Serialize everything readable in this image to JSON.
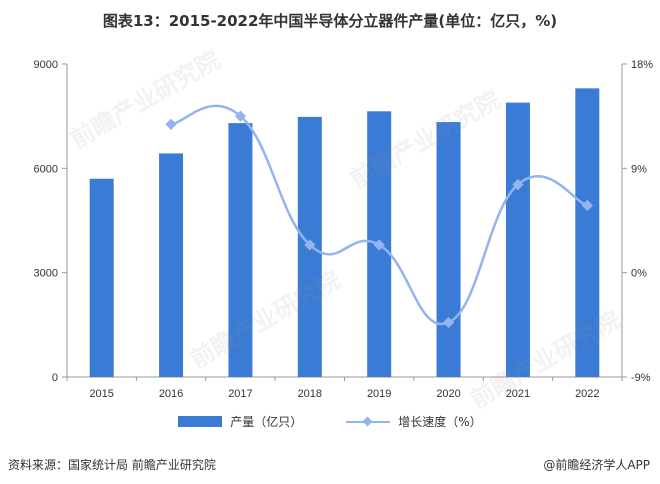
{
  "title": "图表13：2015-2022年中国半导体分立器件产量(单位：亿只，%)",
  "source": "资料来源：国家统计局 前瞻产业研究院",
  "credit": "@前瞻经济学人APP",
  "watermark": "前瞻产业研究院",
  "colors": {
    "bar": "#3a7bd5",
    "line": "#93b4ee",
    "axis": "#999999"
  },
  "legend": {
    "bar_label": "产量（亿只）",
    "line_label": "增长速度（%）"
  },
  "chart_data": {
    "type": "bar",
    "title": "2015-2022年中国半导体分立器件产量",
    "categories": [
      "2015",
      "2016",
      "2017",
      "2018",
      "2019",
      "2020",
      "2021",
      "2022"
    ],
    "series": [
      {
        "name": "产量（亿只）",
        "type": "bar",
        "axis": "left",
        "values": [
          5700,
          6430,
          7300,
          7480,
          7640,
          7330,
          7890,
          8300
        ]
      },
      {
        "name": "增长速度（%）",
        "type": "line",
        "axis": "right",
        "values": [
          null,
          12.8,
          13.5,
          2.4,
          2.4,
          -4.3,
          7.6,
          5.8
        ]
      }
    ],
    "y_left": {
      "ticks": [
        "0",
        "3000",
        "6000",
        "9000"
      ],
      "min": 0,
      "max": 9000
    },
    "y_right": {
      "ticks": [
        "-9%",
        "0%",
        "9%",
        "18%"
      ],
      "min": -9,
      "max": 18
    }
  }
}
